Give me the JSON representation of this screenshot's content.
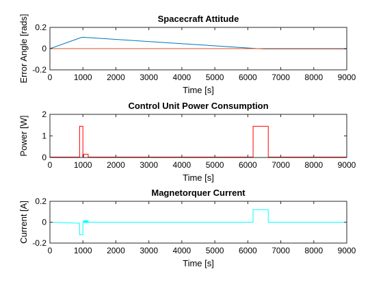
{
  "chart_data": [
    {
      "type": "line",
      "title": "Spacecraft Attitude",
      "xlabel": "Time [s]",
      "ylabel": "Error Angle [rads]",
      "xlim": [
        0,
        9000
      ],
      "ylim": [
        -0.2,
        0.2
      ],
      "xticks": [
        0,
        1000,
        2000,
        3000,
        4000,
        5000,
        6000,
        7000,
        8000,
        9000
      ],
      "yticks": [
        -0.2,
        0,
        0.2
      ],
      "ytick_labels": [
        "-0.2",
        "0",
        "0.2"
      ],
      "grid": false,
      "series": [
        {
          "color": "#0072BD",
          "x": [
            0,
            950,
            1000,
            6300,
            6500,
            9000
          ],
          "y": [
            0,
            0.105,
            0.107,
            0.0,
            -0.003,
            -0.003
          ]
        },
        {
          "color": "#D95319",
          "x": [
            0,
            9000
          ],
          "y": [
            0,
            0
          ]
        }
      ]
    },
    {
      "type": "line",
      "title": "Control Unit Power Consumption",
      "xlabel": "Time [s]",
      "ylabel": "Power [W]",
      "xlim": [
        0,
        9000
      ],
      "ylim": [
        0,
        2
      ],
      "xticks": [
        0,
        1000,
        2000,
        3000,
        4000,
        5000,
        6000,
        7000,
        8000,
        9000
      ],
      "yticks": [
        0,
        1,
        2
      ],
      "ytick_labels": [
        "0",
        "1",
        "2"
      ],
      "grid": false,
      "series": [
        {
          "color": "#FF0000",
          "x": [
            0,
            900,
            900,
            1000,
            1000,
            1020,
            1020,
            1160,
            1160,
            6160,
            6160,
            6620,
            6620,
            9000
          ],
          "y": [
            0.02,
            0.02,
            1.45,
            1.45,
            0.02,
            0.02,
            0.15,
            0.15,
            0.02,
            0.02,
            1.45,
            1.45,
            0.02,
            0.02
          ]
        }
      ]
    },
    {
      "type": "line",
      "title": "Magnetorquer Current",
      "xlabel": "Time [s]",
      "ylabel": "Current [A]",
      "xlim": [
        0,
        9000
      ],
      "ylim": [
        -0.2,
        0.2
      ],
      "xticks": [
        0,
        1000,
        2000,
        3000,
        4000,
        5000,
        6000,
        7000,
        8000,
        9000
      ],
      "yticks": [
        -0.2,
        0,
        0.2
      ],
      "ytick_labels": [
        "-0.2",
        "0",
        "0.2"
      ],
      "grid": false,
      "series": [
        {
          "color": "#00FFFF",
          "x": [
            0,
            880,
            900,
            900,
            1000,
            1000,
            1020,
            1030,
            1040,
            1050,
            1060,
            1070,
            1080,
            1090,
            1100,
            1110,
            1120,
            1130,
            1140,
            1150,
            1160,
            1160,
            6160,
            6160,
            6620,
            6620,
            9000
          ],
          "y": [
            0,
            -0.01,
            -0.01,
            -0.12,
            -0.12,
            0,
            0.01,
            0.0,
            0.012,
            0.0,
            0.012,
            0.0,
            0.012,
            0.0,
            0.012,
            0.0,
            0.012,
            0.0,
            0.012,
            0.0,
            0.01,
            0,
            0,
            0.12,
            0.12,
            0,
            0
          ]
        }
      ]
    }
  ]
}
